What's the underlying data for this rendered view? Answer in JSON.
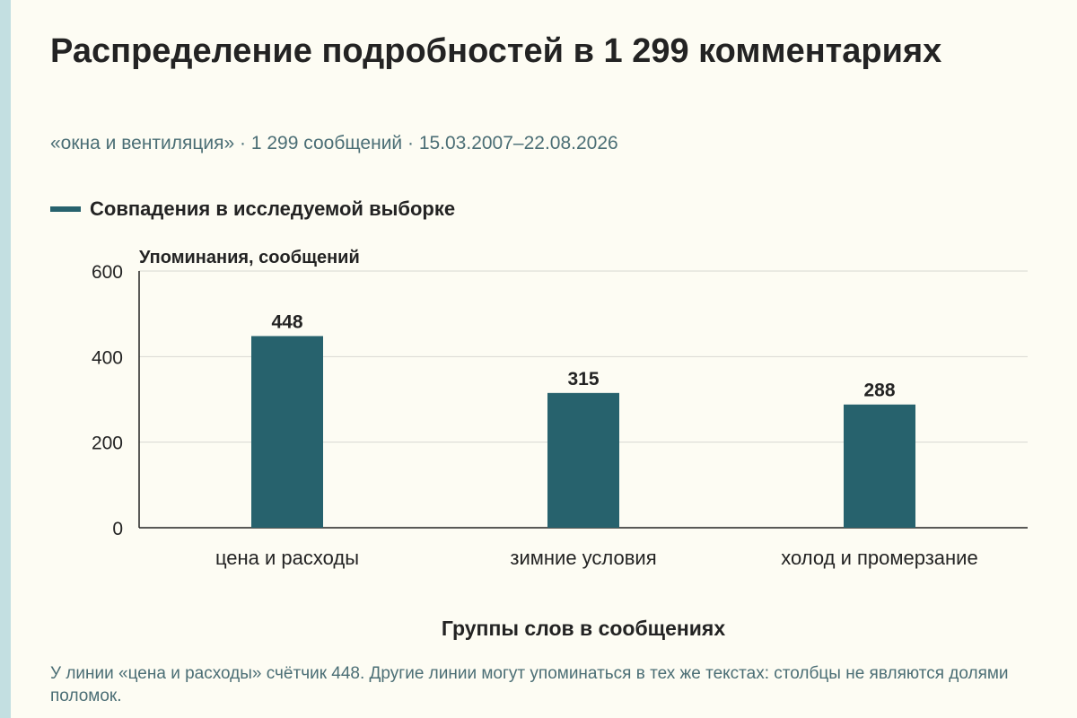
{
  "header": {
    "title": "Распределение подробностей в 1 299 комментариях",
    "subtitle": "«окна и вентиляция» · 1 299 сообщений · 15.03.2007–22.08.2026"
  },
  "legend": {
    "label": "Совпадения в исследуемой выборке",
    "color": "#27626d"
  },
  "footnote": "У линии «цена и расходы» счётчик 448. Другие линии могут упоминаться в тех же текстах: столбцы не являются долями поломок.",
  "chart_data": {
    "type": "bar",
    "categories": [
      "цена и расходы",
      "зимние условия",
      "холод и промерзание"
    ],
    "series": [
      {
        "name": "Совпадения в исследуемой выборке",
        "values": [
          448,
          315,
          288
        ]
      }
    ],
    "xlabel": "Группы слов в сообщениях",
    "ylabel": "Упоминания, сообщений",
    "ylim": [
      0,
      600
    ],
    "yticks": [
      0,
      200,
      400,
      600
    ],
    "grid": true,
    "legend_position": "top-left",
    "bar_color": "#27626d"
  }
}
